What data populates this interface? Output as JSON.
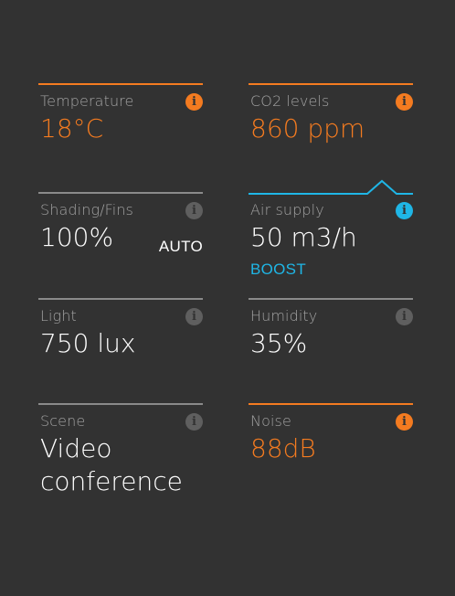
{
  "colors": {
    "background": "#323232",
    "accent_orange": "#f47b20",
    "accent_blue": "#1fb6e6",
    "text_white": "#ffffff",
    "label_gray": "#a3a3a3",
    "icon_gray": "#5f5f5f"
  },
  "tiles": {
    "temperature": {
      "label": "Temperature",
      "value": "18°C",
      "info_icon": "info-icon",
      "info_glyph": "i"
    },
    "co2": {
      "label": "CO2 levels",
      "value": "860 ppm",
      "info_icon": "info-icon",
      "info_glyph": "i"
    },
    "shading": {
      "label": "Shading/Fins",
      "value": "100%",
      "mode": "AUTO",
      "info_icon": "info-icon",
      "info_glyph": "i"
    },
    "air_supply": {
      "label": "Air supply",
      "value": "50 m3/h",
      "mode": "BOOST",
      "info_icon": "info-icon",
      "info_glyph": "i"
    },
    "light": {
      "label": "Light",
      "value": "750 lux",
      "info_icon": "info-icon",
      "info_glyph": "i"
    },
    "humidity": {
      "label": "Humidity",
      "value": "35%",
      "info_icon": "info-icon",
      "info_glyph": "i"
    },
    "scene": {
      "label": "Scene",
      "value": "Video conference",
      "info_icon": "info-icon",
      "info_glyph": "i"
    },
    "noise": {
      "label": "Noise",
      "value": "88dB",
      "info_icon": "info-icon",
      "info_glyph": "i"
    }
  }
}
